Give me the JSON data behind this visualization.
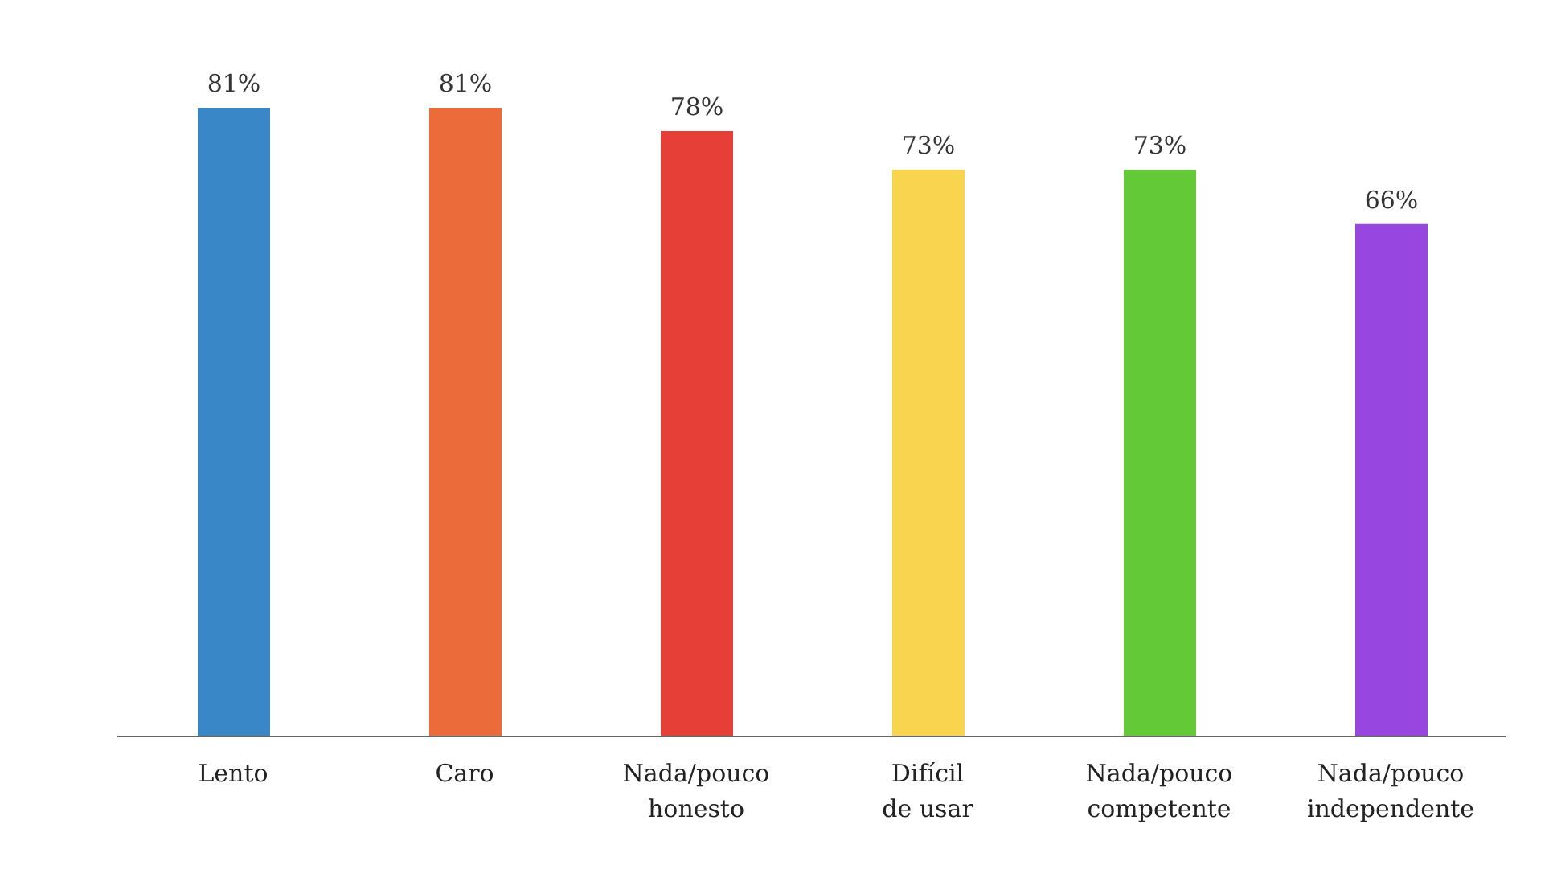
{
  "chart_data": {
    "type": "bar",
    "categories": [
      "Lento",
      "Caro",
      "Nada/pouco honesto",
      "Difícil de usar",
      "Nada/pouco competente",
      "Nada/pouco independente"
    ],
    "values": [
      81,
      81,
      78,
      73,
      73,
      66
    ],
    "value_labels": [
      "81%",
      "81%",
      "78%",
      "73%",
      "73%",
      "66%"
    ],
    "colors": [
      "#3a87c8",
      "#ec6b3b",
      "#e63f37",
      "#f9d44f",
      "#63c936",
      "#9747e0"
    ]
  }
}
